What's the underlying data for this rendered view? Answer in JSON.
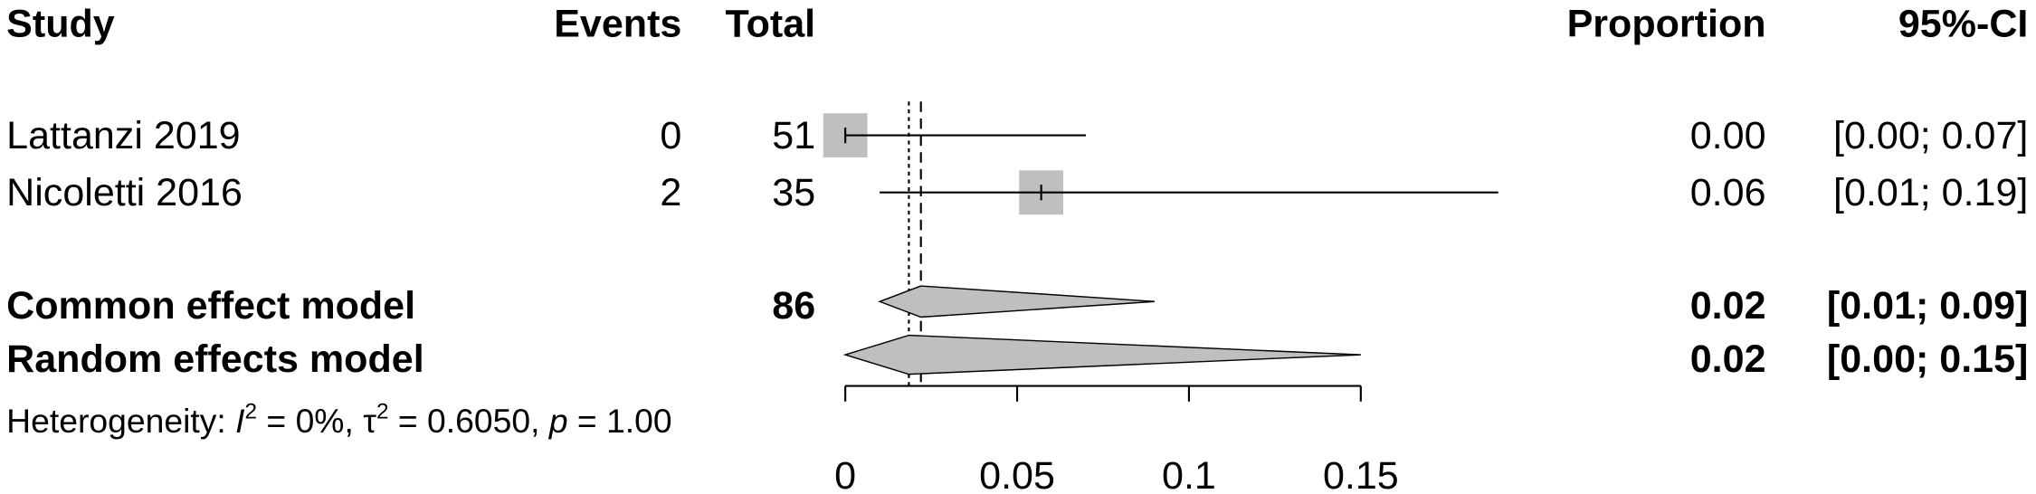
{
  "chart_data": {
    "type": "forest",
    "columns": [
      "Study",
      "Events",
      "Total",
      "Proportion",
      "95%-CI"
    ],
    "studies": {
      "names": [
        "Lattanzi 2019",
        "Nicoletti 2016"
      ],
      "events": [
        0,
        2
      ],
      "totals": [
        51,
        35
      ],
      "values": [
        0.0,
        0.057
      ],
      "value_labels": [
        "0.00",
        "0.06"
      ],
      "lower": [
        0.0,
        0.01
      ],
      "upper": [
        0.07,
        0.19
      ],
      "ci_labels": [
        "[0.00; 0.07]",
        "[0.01; 0.19]"
      ],
      "color": "#bfbfbf"
    },
    "models": {
      "names": [
        "Common effect model",
        "Random effects model"
      ],
      "totals": [
        86,
        null
      ],
      "values": [
        0.022,
        0.0185
      ],
      "value_labels": [
        "0.02",
        "0.02"
      ],
      "lower": [
        0.01,
        0.0
      ],
      "upper": [
        0.09,
        0.15
      ],
      "ci_labels": [
        "[0.01; 0.09]",
        "[0.00; 0.15]"
      ],
      "color": "#bfbfbf"
    },
    "heterogeneity": [
      "Heterogeneity: ",
      "I",
      "2",
      " = 0%, ",
      "τ",
      "2",
      " = 0.6050, ",
      "p",
      " = 1.00"
    ],
    "xlim": [
      0,
      0.15
    ],
    "xticks": [
      0,
      0.05,
      0.1,
      0.15
    ]
  }
}
